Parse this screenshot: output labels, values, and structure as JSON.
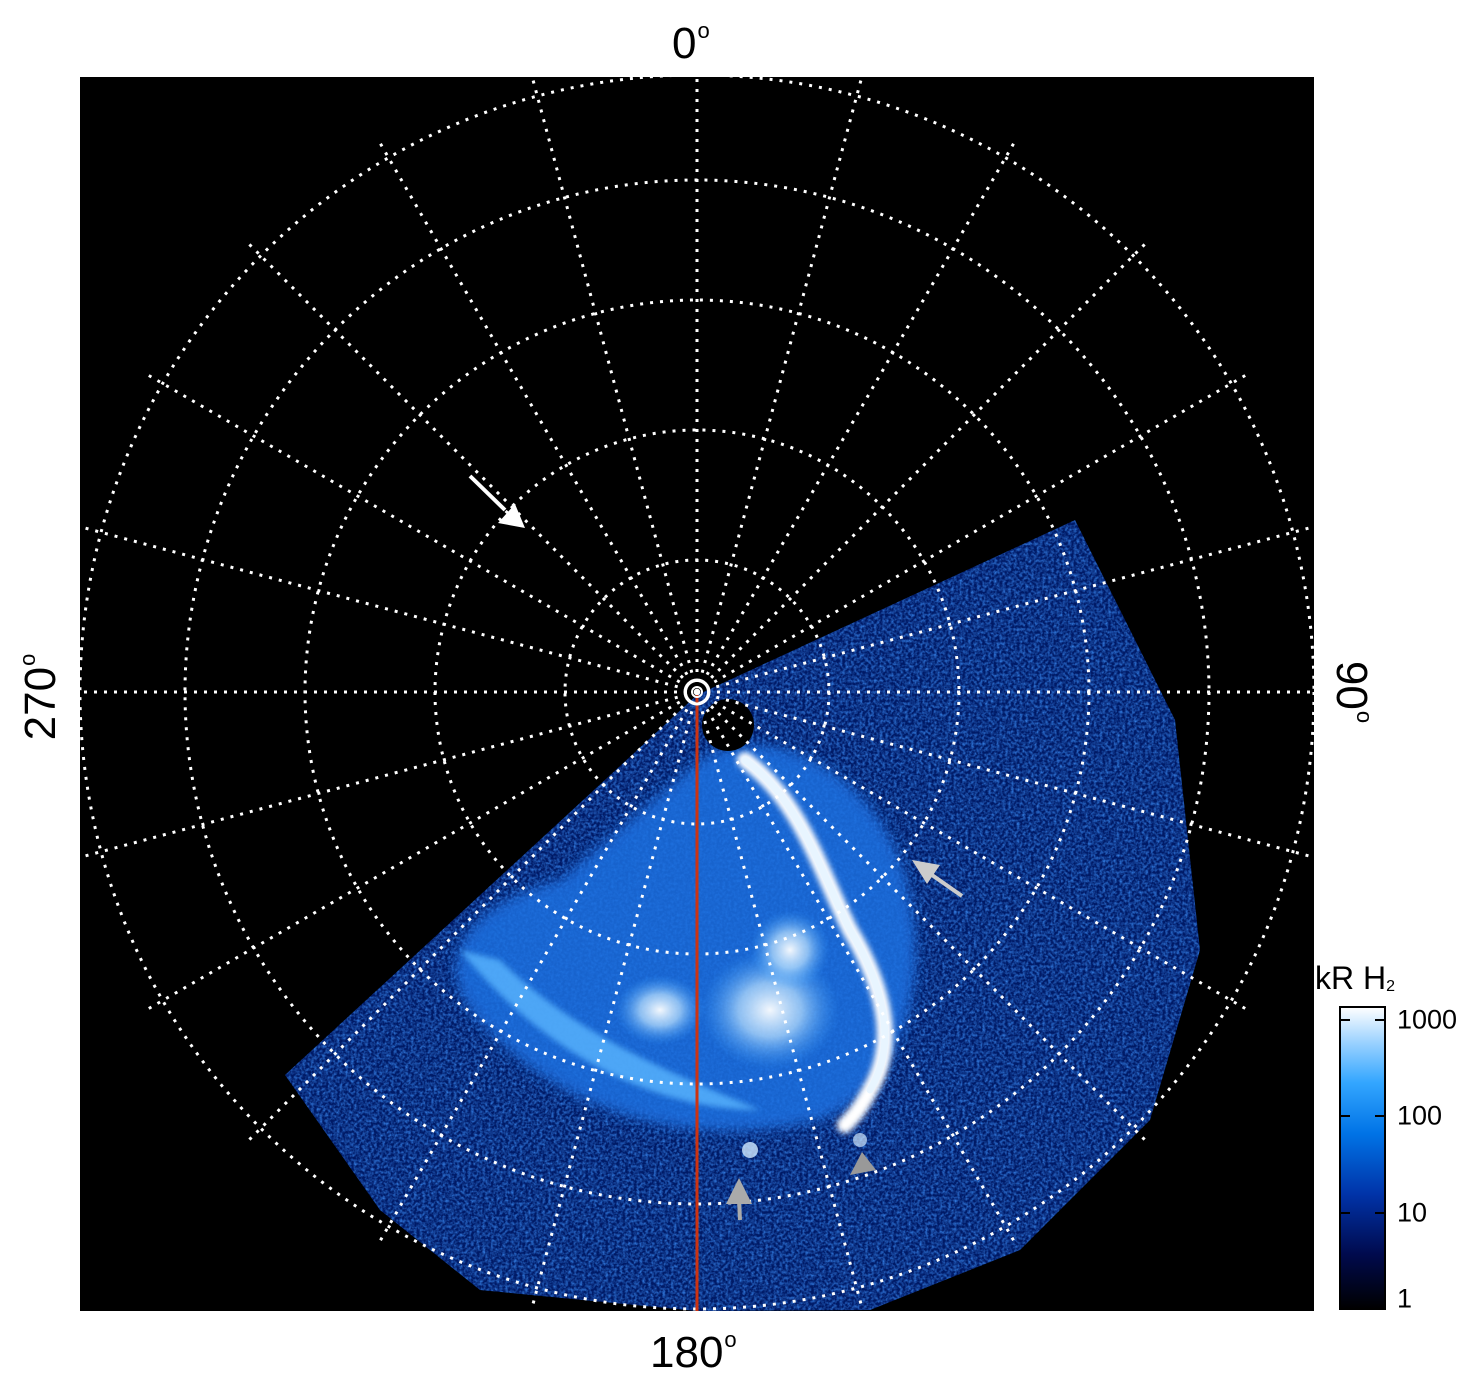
{
  "map": {
    "labels": {
      "top": "0",
      "bottom": "180",
      "left": "270",
      "right": "90",
      "degree_symbol": "o"
    },
    "colors": {
      "background": "#000000",
      "grid": "#ffffff",
      "meridian_line": "#cc3311",
      "arrow_white": "#ffffff",
      "arrow_gray": "#aaaaaa"
    }
  },
  "colorbar": {
    "title": "kR H",
    "title_subscript": "2",
    "ticks": [
      "1000",
      "100",
      "10",
      "1"
    ],
    "scale": "log",
    "colors": [
      "#000000",
      "#000a4d",
      "#0033a8",
      "#0073e6",
      "#33a6ff",
      "#99d1ff",
      "#ffffff"
    ]
  }
}
